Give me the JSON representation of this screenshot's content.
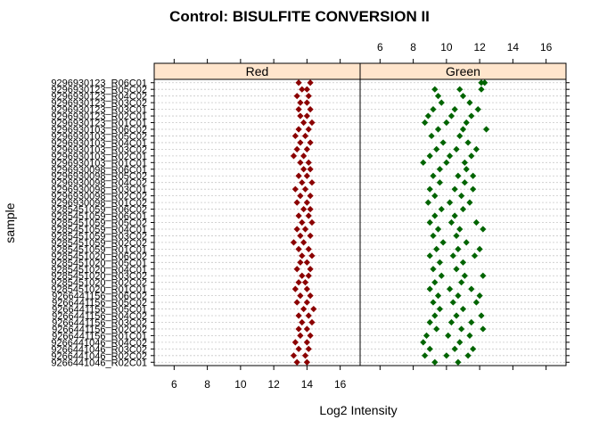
{
  "chart_data": {
    "type": "scatter",
    "title": "Control: BISULFITE CONVERSION II",
    "xlabel": "Log2 Intensity",
    "ylabel": "sample",
    "xlim": [
      4.8,
      17.2
    ],
    "x_ticks": [
      6,
      8,
      10,
      12,
      14,
      16
    ],
    "panels": [
      {
        "name": "Red",
        "strip_color": "#FFE5CC",
        "point_color": "#8B0000"
      },
      {
        "name": "Green",
        "strip_color": "#FFE5CC",
        "point_color": "#006400"
      }
    ],
    "samples": [
      "9296930123_R06C01",
      "9296930123_R05C02",
      "9296930123_R04C02",
      "9296930123_R03C02",
      "9296930123_R03C01",
      "9296930123_R02C01",
      "9296930123_R01C01",
      "9296930103_R06C02",
      "9296930103_R05C02",
      "9296930103_R04C01",
      "9296930103_R03C02",
      "9296930103_R02C01",
      "9296930103_R01C01",
      "9296930098_R06C01",
      "9296930098_R05C02",
      "9296930098_R04C02",
      "9296930098_R03C01",
      "9296930098_R02C02",
      "9296930098_R01C02",
      "9285451059_R06C02",
      "9285451059_R06C01",
      "9285451059_R05C02",
      "9285451059_R04C01",
      "9285451059_R03C02",
      "9285451059_R02C02",
      "9285451059_R01C01",
      "9285451020_R06C02",
      "9285451020_R05C01",
      "9285451020_R04C01",
      "9285451020_R03C02",
      "9285451020_R02C02",
      "9285451020_R01C01",
      "9266441156_R06C02",
      "9266441156_R05C02",
      "9266441156_R05C01",
      "9266441156_R04C02",
      "9266441156_R03C02",
      "9266441156_R02C02",
      "9266441156_R01C01",
      "9266441046_R04C02",
      "9266441046_R03C02",
      "9266441046_R02C02",
      "9266441046_R02C01"
    ],
    "series": [
      {
        "name": "Red",
        "points": [
          [
            13.5,
            1
          ],
          [
            14.2,
            1
          ],
          [
            13.7,
            2
          ],
          [
            14.0,
            2
          ],
          [
            13.4,
            3
          ],
          [
            14.1,
            3
          ],
          [
            13.6,
            4
          ],
          [
            14.0,
            4
          ],
          [
            13.5,
            5
          ],
          [
            14.2,
            5
          ],
          [
            13.6,
            6
          ],
          [
            14.0,
            6
          ],
          [
            13.8,
            7
          ],
          [
            14.3,
            7
          ],
          [
            13.5,
            8
          ],
          [
            14.1,
            8
          ],
          [
            13.3,
            9
          ],
          [
            13.9,
            9
          ],
          [
            13.6,
            10
          ],
          [
            14.2,
            10
          ],
          [
            13.4,
            11
          ],
          [
            14.0,
            11
          ],
          [
            13.2,
            12
          ],
          [
            13.8,
            12
          ],
          [
            13.6,
            13
          ],
          [
            14.1,
            13
          ],
          [
            13.8,
            14
          ],
          [
            14.2,
            14
          ],
          [
            13.5,
            15
          ],
          [
            14.0,
            15
          ],
          [
            13.7,
            16
          ],
          [
            14.3,
            16
          ],
          [
            13.3,
            17
          ],
          [
            13.9,
            17
          ],
          [
            13.6,
            18
          ],
          [
            14.2,
            18
          ],
          [
            13.4,
            19
          ],
          [
            14.0,
            19
          ],
          [
            13.8,
            20
          ],
          [
            14.2,
            20
          ],
          [
            13.5,
            21
          ],
          [
            14.1,
            21
          ],
          [
            13.7,
            22
          ],
          [
            14.3,
            22
          ],
          [
            13.4,
            23
          ],
          [
            13.9,
            23
          ],
          [
            13.6,
            24
          ],
          [
            14.2,
            24
          ],
          [
            13.2,
            25
          ],
          [
            13.8,
            25
          ],
          [
            13.5,
            26
          ],
          [
            14.1,
            26
          ],
          [
            13.7,
            27
          ],
          [
            14.3,
            27
          ],
          [
            13.6,
            28
          ],
          [
            14.0,
            28
          ],
          [
            13.4,
            29
          ],
          [
            14.2,
            29
          ],
          [
            13.7,
            30
          ],
          [
            14.1,
            30
          ],
          [
            13.5,
            31
          ],
          [
            13.9,
            31
          ],
          [
            13.3,
            32
          ],
          [
            14.0,
            32
          ],
          [
            13.6,
            33
          ],
          [
            14.2,
            33
          ],
          [
            13.4,
            34
          ],
          [
            14.0,
            34
          ],
          [
            13.8,
            35
          ],
          [
            14.4,
            35
          ],
          [
            13.5,
            36
          ],
          [
            14.1,
            36
          ],
          [
            13.7,
            37
          ],
          [
            14.3,
            37
          ],
          [
            13.5,
            38
          ],
          [
            14.0,
            38
          ],
          [
            13.6,
            39
          ],
          [
            14.2,
            39
          ],
          [
            13.3,
            40
          ],
          [
            14.0,
            40
          ],
          [
            13.5,
            41
          ],
          [
            14.1,
            41
          ],
          [
            13.2,
            42
          ],
          [
            13.9,
            42
          ],
          [
            13.4,
            43
          ],
          [
            14.0,
            43
          ]
        ]
      },
      {
        "name": "Green",
        "points": [
          [
            12.1,
            1
          ],
          [
            12.3,
            1
          ],
          [
            9.3,
            2
          ],
          [
            10.8,
            2
          ],
          [
            12.1,
            2
          ],
          [
            9.5,
            3
          ],
          [
            11.0,
            3
          ],
          [
            9.7,
            4
          ],
          [
            11.4,
            4
          ],
          [
            9.2,
            5
          ],
          [
            10.5,
            5
          ],
          [
            11.9,
            5
          ],
          [
            8.9,
            6
          ],
          [
            10.3,
            6
          ],
          [
            11.5,
            6
          ],
          [
            8.7,
            7
          ],
          [
            10.0,
            7
          ],
          [
            11.2,
            7
          ],
          [
            9.5,
            8
          ],
          [
            11.0,
            8
          ],
          [
            12.4,
            8
          ],
          [
            9.1,
            9
          ],
          [
            10.8,
            9
          ],
          [
            9.8,
            10
          ],
          [
            11.3,
            10
          ],
          [
            9.4,
            11
          ],
          [
            10.6,
            11
          ],
          [
            11.8,
            11
          ],
          [
            9.0,
            12
          ],
          [
            10.2,
            12
          ],
          [
            11.5,
            12
          ],
          [
            8.6,
            13
          ],
          [
            10.0,
            13
          ],
          [
            11.1,
            13
          ],
          [
            9.6,
            14
          ],
          [
            11.2,
            14
          ],
          [
            9.2,
            15
          ],
          [
            10.7,
            15
          ],
          [
            11.6,
            15
          ],
          [
            9.6,
            16
          ],
          [
            11.1,
            16
          ],
          [
            9.0,
            17
          ],
          [
            10.5,
            17
          ],
          [
            11.6,
            17
          ],
          [
            9.3,
            18
          ],
          [
            10.9,
            18
          ],
          [
            8.9,
            19
          ],
          [
            10.2,
            19
          ],
          [
            11.4,
            19
          ],
          [
            9.7,
            20
          ],
          [
            11.0,
            20
          ],
          [
            9.3,
            21
          ],
          [
            10.5,
            21
          ],
          [
            9.0,
            22
          ],
          [
            10.3,
            22
          ],
          [
            11.8,
            22
          ],
          [
            9.5,
            23
          ],
          [
            10.8,
            23
          ],
          [
            12.2,
            23
          ],
          [
            9.2,
            24
          ],
          [
            10.6,
            24
          ],
          [
            9.8,
            25
          ],
          [
            11.2,
            25
          ],
          [
            9.4,
            26
          ],
          [
            10.7,
            26
          ],
          [
            12.0,
            26
          ],
          [
            9.0,
            27
          ],
          [
            10.4,
            27
          ],
          [
            11.7,
            27
          ],
          [
            9.6,
            28
          ],
          [
            11.0,
            28
          ],
          [
            9.2,
            29
          ],
          [
            10.6,
            29
          ],
          [
            9.7,
            30
          ],
          [
            11.1,
            30
          ],
          [
            12.2,
            30
          ],
          [
            9.3,
            31
          ],
          [
            10.9,
            31
          ],
          [
            9.0,
            32
          ],
          [
            10.2,
            32
          ],
          [
            11.5,
            32
          ],
          [
            9.5,
            33
          ],
          [
            10.7,
            33
          ],
          [
            12.0,
            33
          ],
          [
            9.2,
            34
          ],
          [
            10.4,
            34
          ],
          [
            11.8,
            34
          ],
          [
            9.6,
            35
          ],
          [
            11.0,
            35
          ],
          [
            9.3,
            36
          ],
          [
            10.6,
            36
          ],
          [
            12.1,
            36
          ],
          [
            9.0,
            37
          ],
          [
            10.3,
            37
          ],
          [
            11.5,
            37
          ],
          [
            9.4,
            38
          ],
          [
            10.9,
            38
          ],
          [
            12.2,
            38
          ],
          [
            8.8,
            39
          ],
          [
            10.1,
            39
          ],
          [
            11.4,
            39
          ],
          [
            8.6,
            40
          ],
          [
            10.8,
            40
          ],
          [
            9.0,
            41
          ],
          [
            10.5,
            41
          ],
          [
            11.6,
            41
          ],
          [
            8.7,
            42
          ],
          [
            10.0,
            42
          ],
          [
            11.3,
            42
          ],
          [
            9.3,
            43
          ],
          [
            10.7,
            43
          ]
        ]
      }
    ]
  }
}
